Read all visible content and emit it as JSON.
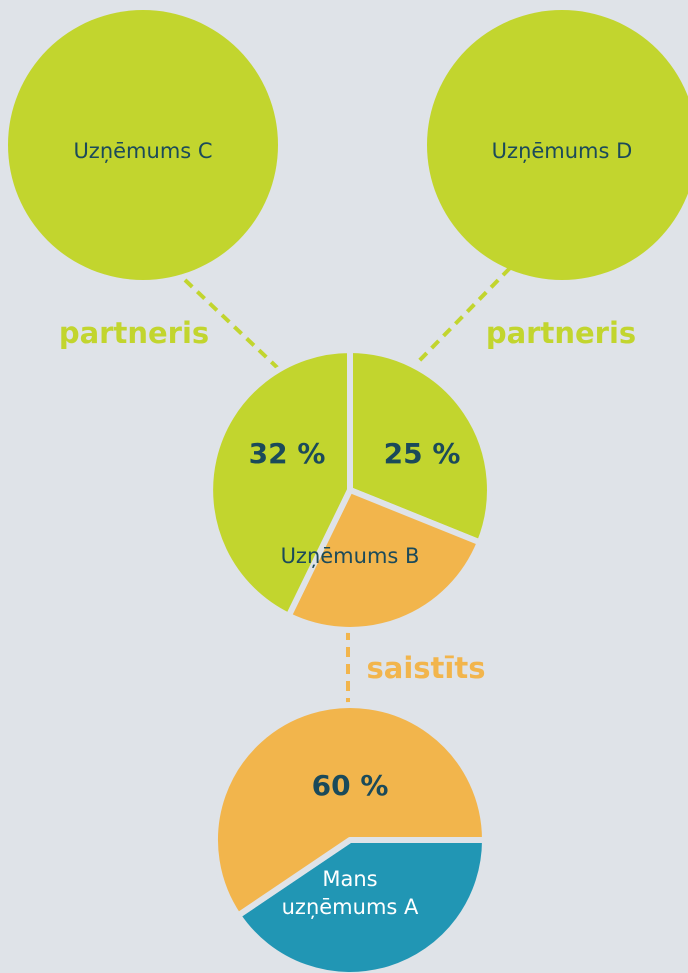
{
  "nodes": [
    {
      "label": "Uzņēmums C"
    },
    {
      "label": "Uzņēmums D"
    },
    {
      "label": "Uzņēmums B",
      "shares": [
        "32 %",
        "25 %"
      ]
    },
    {
      "label": [
        "Mans",
        "uzņēmums A"
      ],
      "share": "60 %"
    }
  ],
  "links": [
    {
      "label": "partneris"
    },
    {
      "label": "partneris"
    },
    {
      "label": "saistīts"
    }
  ]
}
